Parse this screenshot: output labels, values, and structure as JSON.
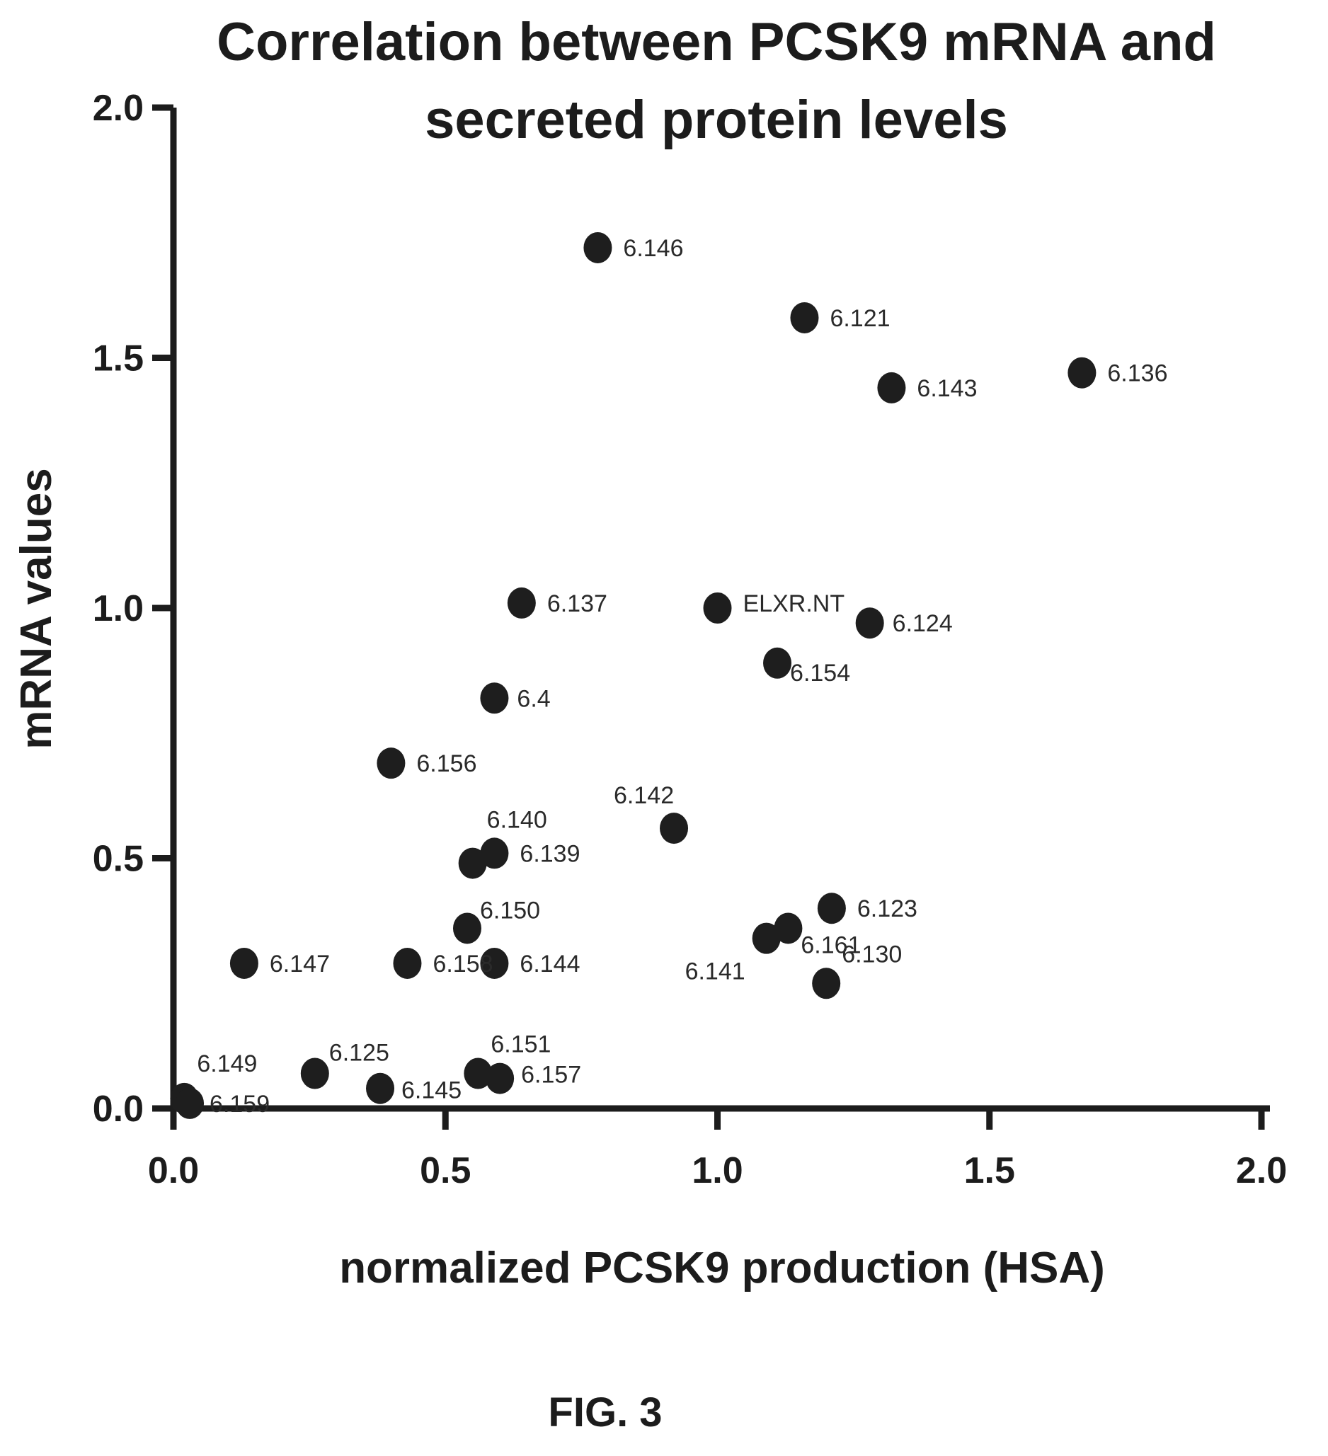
{
  "chart_data": {
    "type": "scatter",
    "title": [
      "Correlation between PCSK9 mRNA and",
      "secreted protein levels"
    ],
    "xlabel": "normalized PCSK9 production (HSA)",
    "ylabel": "mRNA values",
    "xlim": [
      0,
      2
    ],
    "ylim": [
      0,
      2
    ],
    "x_ticks": [
      "0.0",
      "0.5",
      "1.0",
      "1.5",
      "2.0"
    ],
    "y_ticks": [
      "0.0",
      "0.5",
      "1.0",
      "1.5",
      "2.0"
    ],
    "grid": false,
    "figure_label": "FIG. 3",
    "points": [
      {
        "label": "6.146",
        "x": 0.78,
        "y": 1.72
      },
      {
        "label": "6.121",
        "x": 1.16,
        "y": 1.58
      },
      {
        "label": "6.143",
        "x": 1.32,
        "y": 1.44
      },
      {
        "label": "6.136",
        "x": 1.67,
        "y": 1.47
      },
      {
        "label": "6.137",
        "x": 0.64,
        "y": 1.01
      },
      {
        "label": "ELXR.NT",
        "x": 1.0,
        "y": 1.0
      },
      {
        "label": "6.124",
        "x": 1.28,
        "y": 0.97
      },
      {
        "label": "6.154",
        "x": 1.11,
        "y": 0.89
      },
      {
        "label": "6.4",
        "x": 0.59,
        "y": 0.82
      },
      {
        "label": "6.156",
        "x": 0.4,
        "y": 0.69
      },
      {
        "label": "6.142",
        "x": 0.92,
        "y": 0.56
      },
      {
        "label": "6.140",
        "x": 0.55,
        "y": 0.49
      },
      {
        "label": "6.139",
        "x": 0.59,
        "y": 0.51
      },
      {
        "label": "6.123",
        "x": 1.21,
        "y": 0.4
      },
      {
        "label": "6.150",
        "x": 0.54,
        "y": 0.36
      },
      {
        "label": "6.161",
        "x": 1.13,
        "y": 0.36
      },
      {
        "label": "6.141",
        "x": 1.09,
        "y": 0.34
      },
      {
        "label": "6.130",
        "x": 1.2,
        "y": 0.25
      },
      {
        "label": "6.147",
        "x": 0.13,
        "y": 0.29
      },
      {
        "label": "6.158",
        "x": 0.43,
        "y": 0.29
      },
      {
        "label": "6.144",
        "x": 0.59,
        "y": 0.29
      },
      {
        "label": "6.149",
        "x": 0.02,
        "y": 0.02
      },
      {
        "label": "6.159",
        "x": 0.03,
        "y": 0.01
      },
      {
        "label": "6.125",
        "x": 0.26,
        "y": 0.07
      },
      {
        "label": "6.145",
        "x": 0.38,
        "y": 0.04
      },
      {
        "label": "6.151",
        "x": 0.56,
        "y": 0.07
      },
      {
        "label": "6.157",
        "x": 0.6,
        "y": 0.06
      }
    ]
  }
}
